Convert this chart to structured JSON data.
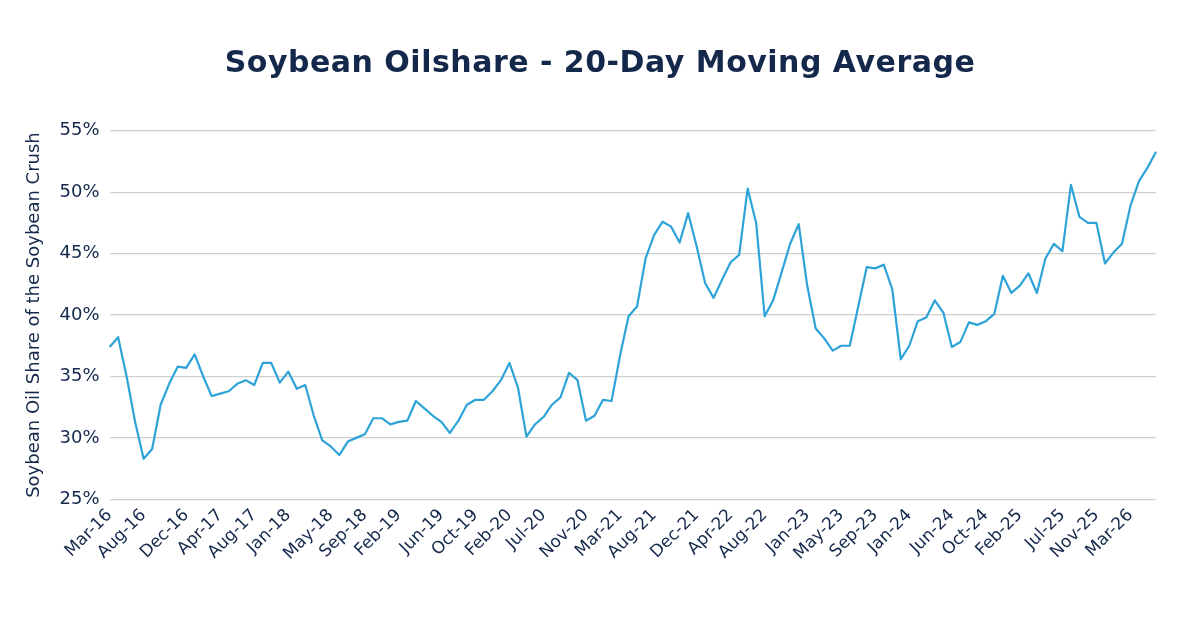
{
  "chart_data": {
    "type": "line",
    "title": "Soybean Oilshare - 20-Day Moving Average",
    "ylabel": "Soybean Oil Share of the Soybean Crush",
    "categories": [
      "Mar-16",
      null,
      null,
      null,
      "Aug-16",
      null,
      null,
      null,
      null,
      "Dec-16",
      null,
      null,
      null,
      "Apr-17",
      null,
      null,
      null,
      "Aug-17",
      null,
      null,
      null,
      "Jan-18",
      null,
      null,
      null,
      null,
      "May-18",
      null,
      null,
      null,
      "Sep-18",
      null,
      null,
      null,
      "Feb-19",
      null,
      null,
      null,
      null,
      "Jun-19",
      null,
      null,
      null,
      "Oct-19",
      null,
      null,
      null,
      "Feb-20",
      null,
      null,
      null,
      "Jul-20",
      null,
      null,
      null,
      null,
      "Nov-20",
      null,
      null,
      null,
      "Mar-21",
      null,
      null,
      null,
      "Aug-21",
      null,
      null,
      null,
      null,
      "Dec-21",
      null,
      null,
      null,
      "Apr-22",
      null,
      null,
      null,
      "Aug-22",
      null,
      null,
      null,
      null,
      "Jan-23",
      null,
      null,
      null,
      "May-23",
      null,
      null,
      null,
      "Sep-23",
      null,
      null,
      null,
      "Jan-24",
      null,
      null,
      null,
      null,
      "Jun-24",
      null,
      null,
      null,
      "Oct-24",
      null,
      null,
      null,
      "Feb-25",
      null,
      null,
      null,
      null,
      "Jul-25",
      null,
      null,
      null,
      "Nov-25",
      null,
      null,
      null,
      "Mar-26",
      null,
      null,
      null
    ],
    "series": [
      {
        "color": "#2ea3d8",
        "values": [
          37.4,
          38.2,
          35.0,
          31.3,
          28.3,
          29.1,
          32.7,
          34.4,
          35.8,
          35.7,
          36.8,
          35.0,
          33.4,
          33.6,
          33.8,
          34.4,
          34.7,
          34.3,
          36.1,
          36.1,
          34.5,
          35.4,
          34.0,
          34.3,
          31.8,
          29.8,
          29.3,
          28.6,
          29.7,
          30.0,
          30.3,
          31.6,
          31.6,
          31.1,
          31.3,
          31.4,
          33.0,
          32.4,
          31.8,
          31.3,
          30.4,
          31.4,
          32.7,
          33.1,
          33.1,
          33.8,
          34.7,
          36.1,
          34.1,
          30.1,
          31.1,
          31.7,
          32.7,
          33.3,
          35.3,
          34.7,
          31.4,
          31.8,
          33.1,
          33.0,
          36.7,
          39.9,
          40.7,
          44.6,
          46.5,
          47.6,
          47.2,
          45.9,
          48.3,
          45.6,
          42.6,
          41.4,
          42.9,
          44.3,
          44.9,
          50.3,
          47.5,
          39.9,
          41.2,
          43.5,
          45.8,
          47.4,
          42.4,
          38.9,
          38.1,
          37.1,
          37.5,
          37.5,
          40.7,
          43.9,
          43.8,
          44.1,
          42.1,
          36.4,
          37.5,
          39.5,
          39.8,
          41.2,
          40.2,
          37.4,
          37.8,
          39.4,
          39.2,
          39.5,
          40.1,
          43.2,
          41.8,
          42.4,
          43.4,
          41.8,
          44.6,
          45.8,
          45.2,
          50.6,
          48.0,
          47.5,
          47.5,
          44.2,
          45.1,
          45.8,
          48.9,
          50.9,
          52.0,
          53.3
        ]
      }
    ],
    "ylim": [
      25,
      55
    ],
    "yticks": [
      {
        "value": 25,
        "label": "25%"
      },
      {
        "value": 30,
        "label": "30%"
      },
      {
        "value": 35,
        "label": "35%"
      },
      {
        "value": 40,
        "label": "40%"
      },
      {
        "value": 45,
        "label": "45%"
      },
      {
        "value": 50,
        "label": "50%"
      },
      {
        "value": 55,
        "label": "55%"
      }
    ],
    "grid": "y"
  }
}
